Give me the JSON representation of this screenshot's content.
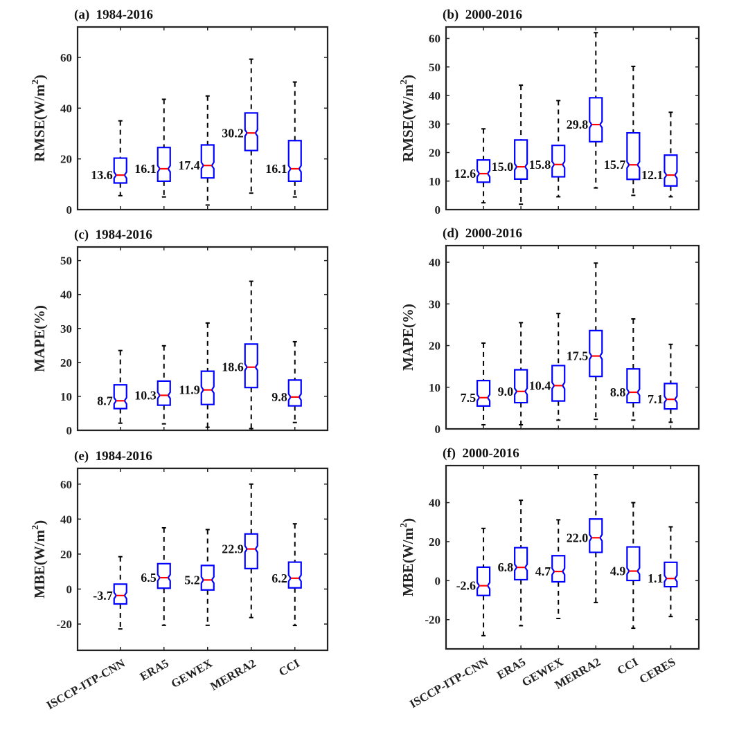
{
  "chart_data": [
    {
      "id": "a",
      "type": "boxplot",
      "title": "(a)  1984-2016",
      "ylabel": "RMSE(W/m²)",
      "ylabel_parts": [
        "RMSE(W/m",
        "2",
        ")"
      ],
      "ylim": [
        0,
        72
      ],
      "yticks": [
        0,
        20,
        40,
        60
      ],
      "notched": true,
      "categories": [
        "ISCCP-ITP-CNN",
        "ERA5",
        "GEWEX",
        "MERRA2",
        "CCI"
      ],
      "show_xticklabels": false,
      "boxes": [
        {
          "whisker_low": 5.5,
          "q1": 10.5,
          "median": 13.6,
          "q3": 20.3,
          "whisker_high": 35.0,
          "label": "13.6"
        },
        {
          "whisker_low": 5.0,
          "q1": 11.2,
          "median": 16.1,
          "q3": 24.5,
          "whisker_high": 43.5,
          "label": "16.1"
        },
        {
          "whisker_low": 1.8,
          "q1": 12.5,
          "median": 17.4,
          "q3": 25.5,
          "whisker_high": 44.8,
          "label": "17.4"
        },
        {
          "whisker_low": 6.5,
          "q1": 23.3,
          "median": 30.2,
          "q3": 38.1,
          "whisker_high": 59.3,
          "label": "30.2"
        },
        {
          "whisker_low": 5.0,
          "q1": 11.2,
          "median": 16.1,
          "q3": 27.2,
          "whisker_high": 50.3,
          "label": "16.1"
        }
      ]
    },
    {
      "id": "b",
      "type": "boxplot",
      "title": "(b)  2000-2016",
      "ylabel": "RMSE(W/m²)",
      "ylabel_parts": [
        "RMSE(W/m",
        "2",
        ")"
      ],
      "ylim": [
        0,
        64
      ],
      "yticks": [
        0,
        10,
        20,
        30,
        40,
        50,
        60
      ],
      "notched": true,
      "categories": [
        "ISCCP-ITP-CNN",
        "ERA5",
        "GEWEX",
        "MERRA2",
        "CCI",
        "CERES"
      ],
      "show_xticklabels": false,
      "boxes": [
        {
          "whisker_low": 2.4,
          "q1": 9.6,
          "median": 12.6,
          "q3": 17.4,
          "whisker_high": 28.3,
          "label": "12.6"
        },
        {
          "whisker_low": 1.9,
          "q1": 10.7,
          "median": 15.0,
          "q3": 24.4,
          "whisker_high": 43.6,
          "label": "15.0"
        },
        {
          "whisker_low": 4.5,
          "q1": 11.5,
          "median": 15.8,
          "q3": 22.5,
          "whisker_high": 38.2,
          "label": "15.8"
        },
        {
          "whisker_low": 7.6,
          "q1": 23.8,
          "median": 29.8,
          "q3": 39.2,
          "whisker_high": 62.0,
          "label": "29.8"
        },
        {
          "whisker_low": 5.0,
          "q1": 10.6,
          "median": 15.7,
          "q3": 26.9,
          "whisker_high": 50.2,
          "label": "15.7"
        },
        {
          "whisker_low": 4.5,
          "q1": 8.3,
          "median": 12.1,
          "q3": 19.1,
          "whisker_high": 34.1,
          "label": "12.1"
        }
      ]
    },
    {
      "id": "c",
      "type": "boxplot",
      "title": "(c)  1984-2016",
      "ylabel": "MAPE(%)",
      "ylabel_parts": [
        "MAPE(%)",
        "",
        ""
      ],
      "ylim": [
        0,
        54
      ],
      "yticks": [
        0,
        10,
        20,
        30,
        40,
        50
      ],
      "notched": true,
      "categories": [
        "ISCCP-ITP-CNN",
        "ERA5",
        "GEWEX",
        "MERRA2",
        "CCI"
      ],
      "show_xticklabels": false,
      "boxes": [
        {
          "whisker_low": 2.1,
          "q1": 6.4,
          "median": 8.7,
          "q3": 13.4,
          "whisker_high": 23.5,
          "label": "8.7"
        },
        {
          "whisker_low": 1.9,
          "q1": 7.4,
          "median": 10.3,
          "q3": 14.5,
          "whisker_high": 24.9,
          "label": "10.3"
        },
        {
          "whisker_low": 0.9,
          "q1": 7.6,
          "median": 11.9,
          "q3": 17.4,
          "whisker_high": 31.6,
          "label": "11.9"
        },
        {
          "whisker_low": 0.5,
          "q1": 12.6,
          "median": 18.6,
          "q3": 25.4,
          "whisker_high": 43.9,
          "label": "18.6"
        },
        {
          "whisker_low": 2.3,
          "q1": 7.2,
          "median": 9.8,
          "q3": 14.8,
          "whisker_high": 26.1,
          "label": "9.8"
        }
      ]
    },
    {
      "id": "d",
      "type": "boxplot",
      "title": "(d)  2000-2016",
      "ylabel": "MAPE(%)",
      "ylabel_parts": [
        "MAPE(%)",
        "",
        ""
      ],
      "ylim": [
        0,
        44
      ],
      "yticks": [
        0,
        10,
        20,
        30,
        40
      ],
      "notched": true,
      "categories": [
        "ISCCP-ITP-CNN",
        "ERA5",
        "GEWEX",
        "MERRA2",
        "CCI",
        "CERES"
      ],
      "show_xticklabels": false,
      "boxes": [
        {
          "whisker_low": 1.0,
          "q1": 5.5,
          "median": 7.5,
          "q3": 11.6,
          "whisker_high": 20.6,
          "label": "7.5"
        },
        {
          "whisker_low": 1.0,
          "q1": 6.3,
          "median": 9.0,
          "q3": 14.2,
          "whisker_high": 25.5,
          "label": "9.0"
        },
        {
          "whisker_low": 2.1,
          "q1": 6.7,
          "median": 10.4,
          "q3": 15.2,
          "whisker_high": 27.7,
          "label": "10.4"
        },
        {
          "whisker_low": 2.3,
          "q1": 12.6,
          "median": 17.5,
          "q3": 23.6,
          "whisker_high": 39.8,
          "label": "17.5"
        },
        {
          "whisker_low": 2.1,
          "q1": 6.3,
          "median": 8.8,
          "q3": 14.4,
          "whisker_high": 26.4,
          "label": "8.8"
        },
        {
          "whisker_low": 1.6,
          "q1": 4.8,
          "median": 7.1,
          "q3": 10.9,
          "whisker_high": 20.3,
          "label": "7.1"
        }
      ]
    },
    {
      "id": "e",
      "type": "boxplot",
      "title": "(e)  1984-2016",
      "ylabel": "MBE(W/m²)",
      "ylabel_parts": [
        "MBE(W/m",
        "2",
        ")"
      ],
      "ylim": [
        -35,
        69
      ],
      "yticks": [
        -20,
        0,
        20,
        40,
        60
      ],
      "notched": true,
      "categories": [
        "ISCCP-ITP-CNN",
        "ERA5",
        "GEWEX",
        "MERRA2",
        "CCI"
      ],
      "show_xticklabels": true,
      "boxes": [
        {
          "whisker_low": -22.8,
          "q1": -8.5,
          "median": -3.7,
          "q3": 2.8,
          "whisker_high": 18.5,
          "label": "-3.7"
        },
        {
          "whisker_low": -20.7,
          "q1": 0.5,
          "median": 6.5,
          "q3": 14.5,
          "whisker_high": 35.0,
          "label": "6.5"
        },
        {
          "whisker_low": -20.7,
          "q1": -0.5,
          "median": 5.2,
          "q3": 13.5,
          "whisker_high": 34.0,
          "label": "5.2"
        },
        {
          "whisker_low": -16.3,
          "q1": 11.7,
          "median": 22.9,
          "q3": 31.5,
          "whisker_high": 60.0,
          "label": "22.9"
        },
        {
          "whisker_low": -20.8,
          "q1": 0.7,
          "median": 6.2,
          "q3": 15.4,
          "whisker_high": 37.3,
          "label": "6.2"
        }
      ]
    },
    {
      "id": "f",
      "type": "boxplot",
      "title": "(f)  2000-2016",
      "ylabel": "MBE(W/m²)",
      "ylabel_parts": [
        "MBE(W/m",
        "2",
        ")"
      ],
      "ylim": [
        -35,
        59
      ],
      "yticks": [
        -20,
        0,
        20,
        40
      ],
      "notched": true,
      "categories": [
        "ISCCP-ITP-CNN",
        "ERA5",
        "GEWEX",
        "MERRA2",
        "CCI",
        "CERES"
      ],
      "show_xticklabels": true,
      "boxes": [
        {
          "whisker_low": -28.2,
          "q1": -7.6,
          "median": -2.6,
          "q3": 6.9,
          "whisker_high": 26.8,
          "label": "-2.6"
        },
        {
          "whisker_low": -23.1,
          "q1": 0.5,
          "median": 6.8,
          "q3": 16.9,
          "whisker_high": 41.2,
          "label": "6.8"
        },
        {
          "whisker_low": -19.4,
          "q1": -0.6,
          "median": 4.7,
          "q3": 12.8,
          "whisker_high": 31.2,
          "label": "4.7"
        },
        {
          "whisker_low": -11.2,
          "q1": 14.5,
          "median": 22.0,
          "q3": 31.6,
          "whisker_high": 54.4,
          "label": "22.0"
        },
        {
          "whisker_low": -24.4,
          "q1": 0.1,
          "median": 4.9,
          "q3": 17.3,
          "whisker_high": 40.0,
          "label": "4.9"
        },
        {
          "whisker_low": -18.4,
          "q1": -3.1,
          "median": 1.1,
          "q3": 9.4,
          "whisker_high": 27.6,
          "label": "1.1"
        }
      ]
    }
  ],
  "colors": {
    "box": "#0000ff",
    "median": "#ff0000",
    "whisker": "#000000",
    "axis": "#222222"
  }
}
